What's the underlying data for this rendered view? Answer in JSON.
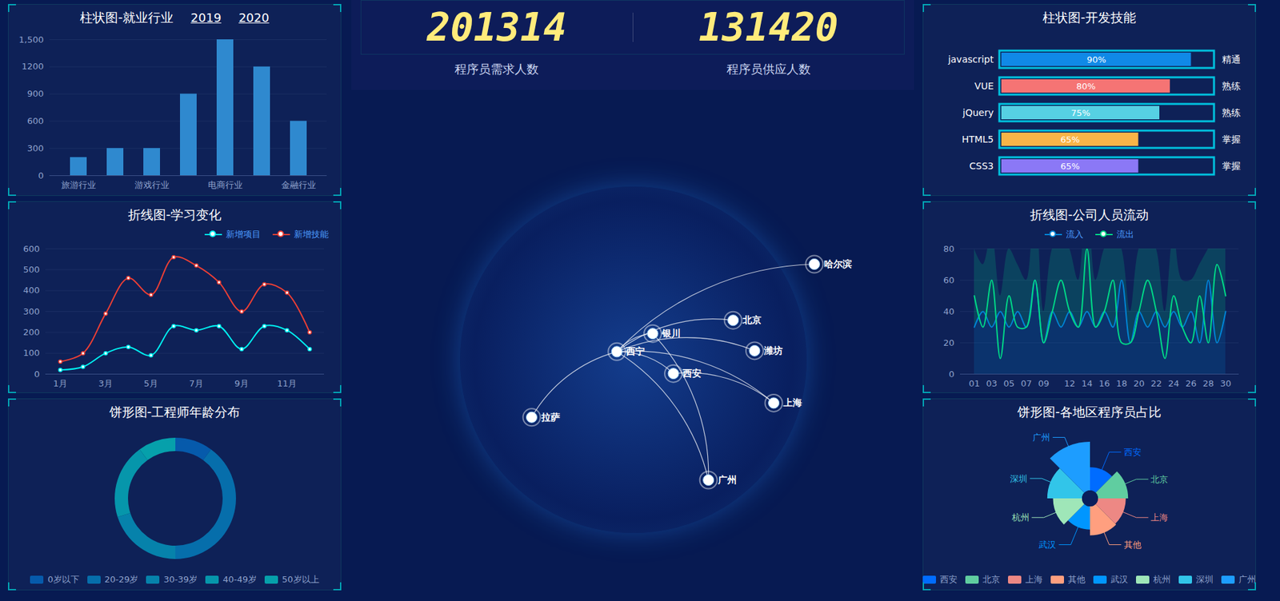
{
  "chart_data": [
    {
      "type": "bar",
      "title": "柱状图-就业行业",
      "annotations": [
        "2019",
        "2020"
      ],
      "categories": [
        "旅游行业",
        null,
        "游戏行业",
        null,
        "电商行业",
        null,
        "金融行业"
      ],
      "values": [
        200,
        300,
        300,
        900,
        1500,
        1200,
        600
      ],
      "color": "#2f89cf",
      "ylim": [
        0,
        1500
      ],
      "yticks": [
        0,
        300,
        600,
        900,
        1200,
        {
          "value": 1500,
          "label": "1,500"
        }
      ],
      "grid": true
    },
    {
      "type": "bar",
      "orientation": "horizontal",
      "title": "柱状图-开发技能",
      "categories": [
        "javascript",
        "VUE",
        "jQuery",
        "HTML5",
        "CSS3"
      ],
      "values": [
        90,
        80,
        75,
        65,
        65
      ],
      "value_labels": [
        "90%",
        "80%",
        "75%",
        "65%",
        "65%"
      ],
      "levels": [
        "精通",
        "熟练",
        "熟练",
        "掌握",
        "掌握"
      ],
      "colors": [
        "#1089e7",
        "#f57474",
        "#56d0e3",
        "#f8b448",
        "#8b78f6"
      ],
      "xlim": [
        0,
        100
      ],
      "data_labels": true,
      "tick_labels": "y"
    },
    {
      "type": "line",
      "title": "折线图-学习变化",
      "categories": [
        "1月",
        null,
        "3月",
        null,
        "5月",
        null,
        "7月",
        null,
        "9月",
        null,
        "11月",
        null
      ],
      "series": [
        {
          "name": "新增项目",
          "color": "#00f2f1",
          "values": [
            20,
            35,
            100,
            130,
            90,
            230,
            210,
            230,
            120,
            230,
            210,
            120
          ]
        },
        {
          "name": "新增技能",
          "color": "#ed3f35",
          "values": [
            60,
            100,
            290,
            460,
            380,
            560,
            520,
            440,
            300,
            430,
            390,
            200
          ]
        }
      ],
      "ylim": [
        0,
        600
      ],
      "yticks": [
        0,
        100,
        200,
        300,
        400,
        500,
        600
      ],
      "legend": "top-right",
      "grid": true
    },
    {
      "type": "area",
      "title": "折线图-公司人员流动",
      "categories": [
        "01",
        null,
        "03",
        null,
        "05",
        null,
        "07",
        null,
        "09",
        null,
        null,
        "12",
        null,
        "14",
        null,
        "16",
        null,
        "18",
        null,
        "20",
        null,
        "22",
        null,
        "24",
        null,
        "26",
        null,
        "28",
        null,
        "30"
      ],
      "series": [
        {
          "name": "流入",
          "color": "#0184d5",
          "values": [
            30,
            40,
            30,
            40,
            30,
            40,
            30,
            60,
            20,
            40,
            30,
            40,
            30,
            40,
            30,
            40,
            30,
            60,
            20,
            40,
            30,
            40,
            30,
            40,
            30,
            40,
            20,
            60,
            20,
            40
          ]
        },
        {
          "name": "流出",
          "color": "#00d887",
          "values": [
            50,
            30,
            60,
            10,
            50,
            30,
            30,
            60,
            20,
            40,
            60,
            40,
            30,
            80,
            30,
            40,
            60,
            20,
            20,
            40,
            60,
            40,
            10,
            50,
            30,
            20,
            50,
            20,
            70,
            50
          ]
        }
      ],
      "ylim": [
        0,
        80
      ],
      "yticks": [
        0,
        20,
        40,
        60,
        80
      ],
      "legend": "top",
      "grid": true
    },
    {
      "type": "pie",
      "title": "饼形图-工程师年龄分布",
      "categories": [
        "0岁以下",
        "20-29岁",
        "30-39岁",
        "40-49岁",
        "50岁以上"
      ],
      "values": [
        1,
        4,
        2,
        2,
        1
      ],
      "colors": [
        "#065aab",
        "#066eab",
        "#0682ab",
        "#0696ab",
        "#06a0ab"
      ],
      "legend": "bottom"
    },
    {
      "type": "rose",
      "title": "饼形图-各地区程序员占比",
      "categories": [
        "西安",
        "北京",
        "上海",
        "其他",
        "武汉",
        "杭州",
        "深圳",
        "广州"
      ],
      "values": [
        20,
        26,
        24,
        25,
        20,
        25,
        30,
        42
      ],
      "colors": [
        "#006cff",
        "#60cda0",
        "#ed8884",
        "#ff9f7f",
        "#0096ff",
        "#9fe6b8",
        "#32c5e9",
        "#1d9dff"
      ],
      "legend": "bottom"
    }
  ],
  "kpis": [
    {
      "value": 201314,
      "label": "程序员需求人数"
    },
    {
      "value": 131420,
      "label": "程序员供应人数"
    }
  ],
  "map": {
    "cities": [
      {
        "name": "哈尔滨",
        "lon": 126.6,
        "lat": 45.8
      },
      {
        "name": "北京",
        "lon": 116.4,
        "lat": 39.9
      },
      {
        "name": "银川",
        "lon": 106.3,
        "lat": 38.5
      },
      {
        "name": "西宁",
        "lon": 101.8,
        "lat": 36.6
      },
      {
        "name": "潍坊",
        "lon": 119.1,
        "lat": 36.7
      },
      {
        "name": "西安",
        "lon": 108.9,
        "lat": 34.3
      },
      {
        "name": "上海",
        "lon": 121.5,
        "lat": 31.2
      },
      {
        "name": "拉萨",
        "lon": 91.1,
        "lat": 29.7
      },
      {
        "name": "广州",
        "lon": 113.3,
        "lat": 23.1
      }
    ],
    "routes": [
      [
        "西宁",
        "哈尔滨"
      ],
      [
        "西宁",
        "北京"
      ],
      [
        "西宁",
        "银川"
      ],
      [
        "西宁",
        "潍坊"
      ],
      [
        "西宁",
        "上海"
      ],
      [
        "拉萨",
        "西宁"
      ],
      [
        "西宁",
        "广州"
      ],
      [
        "西安",
        "上海"
      ],
      [
        "银川",
        "广州"
      ],
      [
        "西宁",
        "西安"
      ]
    ]
  }
}
